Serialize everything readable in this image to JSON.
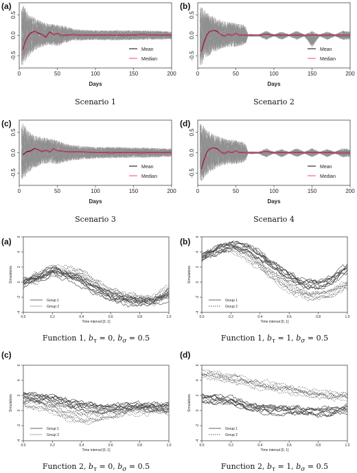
{
  "chart_data": [
    {
      "panel": "(a)",
      "type": "line",
      "xlabel": "Days",
      "caption": "Scenario 1",
      "xlim": [
        0,
        200
      ],
      "ylim": [
        -0.8,
        0.8
      ],
      "xticks": [
        "0",
        "50",
        "100",
        "150",
        "200"
      ],
      "yticks": [
        "-0.5",
        "0.0",
        "0.5"
      ],
      "legend": [
        "Mean",
        "Median"
      ],
      "legend_position": "bottom-right",
      "envelope": {
        "x": [
          5,
          10,
          20,
          30,
          40,
          50,
          60,
          70,
          80,
          100,
          120,
          150,
          180,
          200
        ],
        "lower": [
          -0.78,
          -0.6,
          -0.4,
          -0.3,
          -0.25,
          -0.28,
          -0.2,
          -0.14,
          -0.13,
          -0.12,
          -0.13,
          -0.12,
          -0.11,
          -0.1
        ],
        "upper": [
          0.8,
          0.62,
          0.45,
          0.35,
          0.3,
          0.28,
          0.25,
          0.17,
          0.15,
          0.13,
          0.13,
          0.13,
          0.12,
          0.1
        ]
      },
      "series": [
        {
          "name": "Mean",
          "color": "#000000",
          "x": [
            5,
            8,
            12,
            15,
            20,
            25,
            30,
            35,
            40,
            45,
            50,
            55,
            60,
            70,
            80,
            100,
            120,
            140,
            160,
            180,
            200
          ],
          "values": [
            -0.35,
            -0.15,
            -0.02,
            0.05,
            0.1,
            0.05,
            0.02,
            -0.05,
            0.08,
            0.02,
            0.05,
            0.0,
            0.0,
            0.02,
            0.01,
            0.0,
            0.01,
            0.0,
            0.02,
            0.01,
            0.0
          ]
        },
        {
          "name": "Median",
          "color": "#ff3f6f",
          "x": [
            5,
            8,
            12,
            15,
            20,
            25,
            30,
            35,
            40,
            45,
            50,
            55,
            60,
            70,
            80,
            100,
            120,
            140,
            160,
            180,
            200
          ],
          "values": [
            -0.37,
            -0.16,
            -0.03,
            0.04,
            0.1,
            0.04,
            0.02,
            -0.06,
            0.07,
            0.02,
            0.05,
            0.0,
            0.0,
            0.02,
            0.01,
            0.0,
            0.01,
            0.0,
            0.02,
            0.01,
            0.0
          ]
        }
      ]
    },
    {
      "panel": "(b)",
      "type": "line",
      "xlabel": "Days",
      "caption": "Scenario 2",
      "xlim": [
        0,
        200
      ],
      "ylim": [
        -0.8,
        0.8
      ],
      "xticks": [
        "0",
        "50",
        "100",
        "150",
        "200"
      ],
      "yticks": [
        "-0.5",
        "0.0",
        "0.5"
      ],
      "legend": [
        "Mean",
        "Median"
      ],
      "legend_position": "bottom-right",
      "envelope": {
        "x": [
          5,
          10,
          20,
          30,
          40,
          50,
          60,
          64,
          65,
          70,
          80,
          90,
          100,
          110,
          120,
          130,
          140,
          150,
          160,
          170,
          180,
          190,
          200
        ],
        "lower": [
          -0.78,
          -0.6,
          -0.45,
          -0.35,
          -0.3,
          -0.3,
          -0.25,
          -0.2,
          -0.02,
          -0.03,
          -0.02,
          -0.12,
          -0.02,
          -0.12,
          -0.02,
          -0.12,
          -0.02,
          -0.3,
          -0.02,
          -0.12,
          -0.02,
          -0.12,
          -0.1
        ],
        "upper": [
          0.8,
          0.62,
          0.5,
          0.4,
          0.35,
          0.32,
          0.28,
          0.2,
          0.02,
          0.03,
          0.02,
          0.12,
          0.02,
          0.1,
          0.02,
          0.12,
          0.02,
          0.12,
          0.02,
          0.1,
          0.02,
          0.12,
          0.1
        ]
      },
      "series": [
        {
          "name": "Mean",
          "color": "#000000",
          "x": [
            5,
            8,
            12,
            15,
            20,
            25,
            30,
            35,
            40,
            45,
            50,
            55,
            60,
            64,
            70,
            80,
            90,
            100,
            120,
            140,
            160,
            180,
            200
          ],
          "values": [
            -0.4,
            -0.2,
            0.0,
            0.08,
            0.12,
            0.1,
            0.02,
            -0.02,
            0.03,
            0.0,
            0.05,
            0.0,
            0.01,
            0.0,
            0.0,
            0.0,
            0.03,
            0.0,
            0.01,
            0.0,
            0.01,
            0.0,
            0.0
          ]
        },
        {
          "name": "Median",
          "color": "#ff3f6f",
          "x": [
            5,
            8,
            12,
            15,
            20,
            25,
            30,
            35,
            40,
            45,
            50,
            55,
            60,
            64,
            70,
            80,
            90,
            100,
            120,
            140,
            160,
            180,
            200
          ],
          "values": [
            -0.42,
            -0.22,
            -0.01,
            0.07,
            0.12,
            0.09,
            0.02,
            -0.02,
            0.03,
            0.0,
            0.05,
            0.0,
            0.01,
            0.0,
            0.0,
            0.0,
            0.03,
            0.0,
            0.01,
            0.0,
            0.01,
            0.0,
            0.0
          ]
        }
      ]
    },
    {
      "panel": "(c)",
      "type": "line",
      "xlabel": "Days",
      "caption": "Scenario 3",
      "xlim": [
        0,
        200
      ],
      "ylim": [
        -0.8,
        0.8
      ],
      "xticks": [
        "0",
        "50",
        "100",
        "150",
        "200"
      ],
      "yticks": [
        "-0.5",
        "0.0",
        "0.5"
      ],
      "legend": [
        "Mean",
        "Median"
      ],
      "legend_position": "bottom-right",
      "envelope": {
        "x": [
          5,
          10,
          20,
          30,
          40,
          50,
          60,
          70,
          80,
          100,
          120,
          150,
          180,
          200
        ],
        "lower": [
          -0.7,
          -0.55,
          -0.4,
          -0.3,
          -0.28,
          -0.3,
          -0.25,
          -0.2,
          -0.18,
          -0.15,
          -0.14,
          -0.13,
          -0.12,
          -0.1
        ],
        "upper": [
          0.78,
          0.6,
          0.45,
          0.4,
          0.38,
          0.32,
          0.25,
          0.2,
          0.18,
          0.15,
          0.15,
          0.14,
          0.12,
          0.1
        ]
      },
      "series": [
        {
          "name": "Mean",
          "color": "#000000",
          "x": [
            5,
            10,
            15,
            20,
            25,
            30,
            35,
            40,
            45,
            50,
            60,
            70,
            80,
            100,
            120,
            140,
            160,
            180,
            200
          ],
          "values": [
            -0.05,
            0.02,
            0.04,
            0.1,
            0.07,
            0.03,
            0.06,
            0.02,
            0.1,
            0.05,
            0.03,
            0.02,
            0.02,
            0.01,
            0.0,
            0.01,
            0.0,
            0.01,
            0.0
          ]
        },
        {
          "name": "Median",
          "color": "#ff3f6f",
          "x": [
            5,
            10,
            15,
            20,
            25,
            30,
            35,
            40,
            45,
            50,
            60,
            70,
            80,
            100,
            120,
            140,
            160,
            180,
            200
          ],
          "values": [
            -0.06,
            0.01,
            0.03,
            0.09,
            0.07,
            0.03,
            0.06,
            0.02,
            0.1,
            0.05,
            0.03,
            0.02,
            0.02,
            0.01,
            0.0,
            0.01,
            0.0,
            0.01,
            0.0
          ]
        }
      ]
    },
    {
      "panel": "(d)",
      "type": "line",
      "xlabel": "Days",
      "caption": "Scenario 4",
      "xlim": [
        0,
        200
      ],
      "ylim": [
        -0.8,
        0.8
      ],
      "xticks": [
        "0",
        "50",
        "100",
        "150",
        "200"
      ],
      "yticks": [
        "-0.5",
        "0.0",
        "0.5"
      ],
      "legend": [
        "Mean",
        "Median"
      ],
      "legend_position": "bottom-right",
      "envelope": {
        "x": [
          5,
          10,
          20,
          30,
          40,
          50,
          60,
          64,
          65,
          70,
          80,
          90,
          100,
          110,
          120,
          130,
          140,
          150,
          160,
          170,
          180,
          190,
          200
        ],
        "lower": [
          -0.78,
          -0.6,
          -0.45,
          -0.35,
          -0.3,
          -0.3,
          -0.25,
          -0.2,
          -0.02,
          -0.03,
          -0.02,
          -0.12,
          -0.02,
          -0.12,
          -0.02,
          -0.12,
          -0.02,
          -0.12,
          -0.02,
          -0.12,
          -0.02,
          -0.12,
          -0.1
        ],
        "upper": [
          0.78,
          0.62,
          0.5,
          0.4,
          0.35,
          0.32,
          0.28,
          0.2,
          0.02,
          0.03,
          0.02,
          0.12,
          0.02,
          0.1,
          0.02,
          0.12,
          0.02,
          0.12,
          0.02,
          0.1,
          0.02,
          0.12,
          0.1
        ]
      },
      "series": [
        {
          "name": "Mean",
          "color": "#000000",
          "x": [
            5,
            8,
            12,
            15,
            20,
            25,
            30,
            35,
            40,
            45,
            50,
            55,
            60,
            64,
            70,
            80,
            90,
            100,
            120,
            140,
            160,
            180,
            200
          ],
          "values": [
            -0.4,
            -0.2,
            0.0,
            0.08,
            0.12,
            0.1,
            0.02,
            -0.02,
            0.03,
            0.0,
            0.05,
            0.0,
            0.01,
            0.0,
            0.0,
            0.0,
            0.03,
            0.0,
            0.01,
            0.0,
            0.01,
            0.0,
            0.0
          ]
        },
        {
          "name": "Median",
          "color": "#ff3f6f",
          "x": [
            5,
            8,
            12,
            15,
            20,
            25,
            30,
            35,
            40,
            45,
            50,
            55,
            60,
            64,
            70,
            80,
            90,
            100,
            120,
            140,
            160,
            180,
            200
          ],
          "values": [
            -0.42,
            -0.22,
            -0.01,
            0.07,
            0.12,
            0.09,
            0.02,
            -0.02,
            0.03,
            0.0,
            0.05,
            0.0,
            0.01,
            0.0,
            0.0,
            0.0,
            0.03,
            0.0,
            0.01,
            0.0,
            0.01,
            0.0,
            0.0
          ]
        }
      ]
    },
    {
      "panel": "(a)",
      "type": "line",
      "xlabel": "Time interval [0, 1]",
      "ylabel": "Simulations",
      "caption": "Function 1, $b_\\tau = 0$, $b_\\sigma = 0.5$",
      "xlim": [
        0,
        1
      ],
      "ylim": [
        -4,
        6
      ],
      "xticks": [
        "0.0",
        "0.2",
        "0.4",
        "0.6",
        "0.8",
        "1.0"
      ],
      "yticks": [
        "-4",
        "-2",
        "0",
        "2",
        "4",
        "6"
      ],
      "legend": [
        "Group 1",
        "Group 2"
      ],
      "legend_position": "bottom-left",
      "series": [
        {
          "name": "Group 1",
          "style": "solid",
          "x": [
            0.0,
            0.1,
            0.2,
            0.3,
            0.4,
            0.5,
            0.6,
            0.7,
            0.8,
            0.9,
            1.0
          ],
          "values": [
            -0.2,
            0.6,
            1.5,
            0.9,
            0.0,
            -1.1,
            -1.9,
            -2.4,
            -2.6,
            -2.6,
            -1.6
          ]
        },
        {
          "name": "Group 2",
          "style": "dashed",
          "x": [
            0.0,
            0.1,
            0.2,
            0.3,
            0.4,
            0.5,
            0.6,
            0.7,
            0.8,
            0.9,
            1.0
          ],
          "values": [
            0.0,
            0.7,
            1.4,
            1.5,
            0.9,
            -0.2,
            -1.3,
            -2.1,
            -2.4,
            -2.3,
            -1.1
          ]
        }
      ]
    },
    {
      "panel": "(b)",
      "type": "line",
      "xlabel": "Time interval [0, 1]",
      "ylabel": "Simulations",
      "caption": "Function 1, $b_\\tau = 1$, $b_\\sigma = 0.5$",
      "xlim": [
        0,
        1
      ],
      "ylim": [
        -4,
        6
      ],
      "xticks": [
        "0.0",
        "0.2",
        "0.4",
        "0.6",
        "0.8",
        "1.0"
      ],
      "yticks": [
        "-4",
        "-2",
        "0",
        "2",
        "4",
        "6"
      ],
      "legend": [
        "Group 1",
        "Group 2"
      ],
      "legend_position": "bottom-left",
      "series": [
        {
          "name": "Group 1",
          "style": "solid",
          "x": [
            0.0,
            0.1,
            0.2,
            0.3,
            0.4,
            0.5,
            0.6,
            0.7,
            0.8,
            0.9,
            1.0
          ],
          "values": [
            3.2,
            4.3,
            4.9,
            4.6,
            3.6,
            2.2,
            0.8,
            -0.2,
            -0.4,
            0.4,
            1.8
          ]
        },
        {
          "name": "Group 2",
          "style": "dashed",
          "x": [
            0.0,
            0.1,
            0.2,
            0.3,
            0.4,
            0.5,
            0.6,
            0.7,
            0.8,
            0.9,
            1.0
          ],
          "values": [
            3.4,
            4.1,
            4.5,
            3.6,
            2.2,
            0.6,
            -0.8,
            -1.7,
            -1.9,
            -1.4,
            -0.3
          ]
        }
      ]
    },
    {
      "panel": "(c)",
      "type": "line",
      "xlabel": "Time interval [0, 1]",
      "ylabel": "Simulations",
      "caption": "Function 2, $b_\\tau = 0$, $b_\\sigma = 0.5$",
      "xlim": [
        0,
        1
      ],
      "ylim": [
        -4,
        6
      ],
      "xticks": [
        "0.0",
        "0.2",
        "0.4",
        "0.6",
        "0.8",
        "1.0"
      ],
      "yticks": [
        "-4",
        "-2",
        "0",
        "2",
        "4",
        "6"
      ],
      "legend": [
        "Group 1",
        "Group 2"
      ],
      "legend_position": "bottom-left",
      "series": [
        {
          "name": "Group 1",
          "style": "solid",
          "x": [
            0.0,
            0.1,
            0.2,
            0.3,
            0.4,
            0.5,
            0.6,
            0.7,
            0.8,
            0.9,
            1.0
          ],
          "values": [
            1.8,
            1.6,
            1.5,
            1.0,
            0.6,
            0.3,
            0.2,
            0.3,
            0.5,
            0.4,
            0.5
          ]
        },
        {
          "name": "Group 2",
          "style": "dashed",
          "x": [
            0.0,
            0.1,
            0.2,
            0.3,
            0.4,
            0.5,
            0.6,
            0.7,
            0.8,
            0.9,
            1.0
          ],
          "values": [
            1.2,
            0.8,
            0.3,
            -0.6,
            -1.0,
            -0.9,
            -0.5,
            0.0,
            0.2,
            0.1,
            0.1
          ]
        }
      ]
    },
    {
      "panel": "(d)",
      "type": "line",
      "xlabel": "Time interval [0, 1]",
      "ylabel": "Simulations",
      "caption": "Function 2, $b_\\tau = 1$, $b_\\sigma = 0.5$",
      "xlim": [
        0,
        1
      ],
      "ylim": [
        -4,
        6
      ],
      "xticks": [
        "0.0",
        "0.2",
        "0.4",
        "0.6",
        "0.8",
        "1.0"
      ],
      "yticks": [
        "-4",
        "-2",
        "0",
        "2",
        "4",
        "6"
      ],
      "legend": [
        "Group 1",
        "Group 2"
      ],
      "legend_position": "bottom-left",
      "series": [
        {
          "name": "Group 1",
          "style": "solid",
          "x": [
            0.0,
            0.1,
            0.2,
            0.3,
            0.4,
            0.5,
            0.6,
            0.7,
            0.8,
            0.9,
            1.0
          ],
          "values": [
            1.6,
            1.4,
            1.2,
            0.6,
            0.2,
            0.1,
            0.0,
            -0.1,
            -0.2,
            -0.1,
            0.2
          ]
        },
        {
          "name": "Group 2",
          "style": "dashed",
          "x": [
            0.0,
            0.1,
            0.2,
            0.3,
            0.4,
            0.5,
            0.6,
            0.7,
            0.8,
            0.9,
            1.0
          ],
          "values": [
            4.8,
            4.5,
            4.2,
            3.7,
            3.3,
            3.0,
            2.7,
            2.4,
            2.1,
            1.9,
            1.8
          ]
        }
      ]
    }
  ]
}
